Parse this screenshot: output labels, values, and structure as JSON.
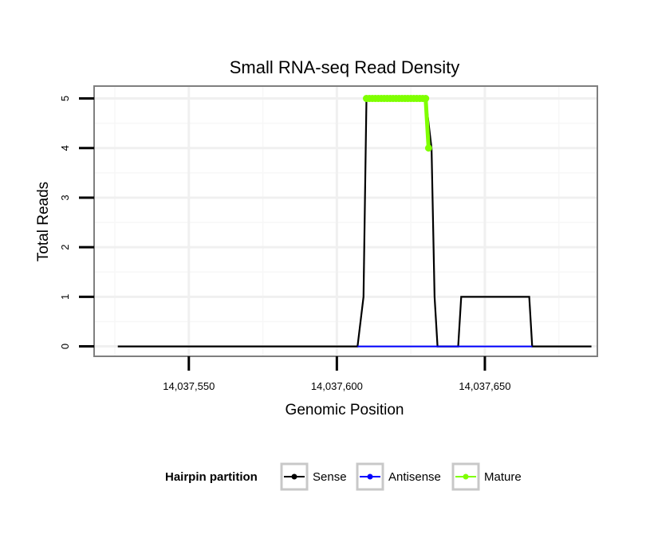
{
  "chart_data": {
    "type": "line",
    "title": "Small RNA-seq Read Density",
    "xlabel": "Genomic Position",
    "ylabel": "Total Reads",
    "xlim": [
      14037518,
      14037688
    ],
    "ylim": [
      -0.2,
      5.25
    ],
    "x_ticks": [
      14037550,
      14037600,
      14037650
    ],
    "x_tick_labels": [
      "14,037,550",
      "14,037,600",
      "14,037,650"
    ],
    "y_ticks": [
      0,
      1,
      2,
      3,
      4,
      5
    ],
    "y_tick_labels": [
      "0",
      "1",
      "2",
      "3",
      "4",
      "5"
    ],
    "grid": true,
    "legend": {
      "title": "Hairpin partition",
      "position": "bottom",
      "entries": [
        "Sense",
        "Antisense",
        "Mature"
      ]
    },
    "series": [
      {
        "name": "Sense",
        "color": "#000000",
        "x": [
          14037526,
          14037607,
          14037609,
          14037610,
          14037630,
          14037632,
          14037633,
          14037634,
          14037641,
          14037642,
          14037665,
          14037666,
          14037686
        ],
        "y": [
          0,
          0,
          1,
          5,
          5,
          4,
          1,
          0,
          0,
          1,
          1,
          0,
          0
        ]
      },
      {
        "name": "Antisense",
        "color": "#0000ff",
        "x": [
          14037607,
          14037666
        ],
        "y": [
          0,
          0
        ]
      },
      {
        "name": "Mature",
        "color": "#7fff00",
        "x": [
          14037610,
          14037611,
          14037612,
          14037613,
          14037614,
          14037615,
          14037616,
          14037617,
          14037618,
          14037619,
          14037620,
          14037621,
          14037622,
          14037623,
          14037624,
          14037625,
          14037626,
          14037627,
          14037628,
          14037629,
          14037630,
          14037631
        ],
        "y": [
          5,
          5,
          5,
          5,
          5,
          5,
          5,
          5,
          5,
          5,
          5,
          5,
          5,
          5,
          5,
          5,
          5,
          5,
          5,
          5,
          5,
          4
        ]
      }
    ]
  }
}
